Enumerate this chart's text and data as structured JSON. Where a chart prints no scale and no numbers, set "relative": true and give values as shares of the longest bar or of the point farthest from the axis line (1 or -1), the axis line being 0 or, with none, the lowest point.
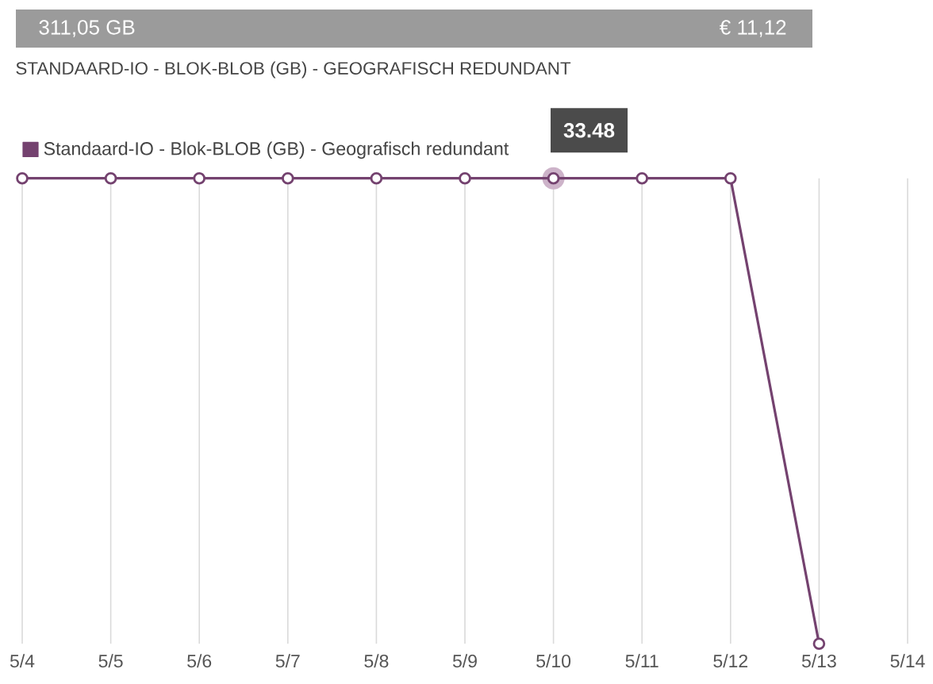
{
  "chart_data": {
    "type": "line",
    "title": "311,05 GB",
    "subtitle": "STANDAARD-IO - BLOK-BLOB (GB) - GEOGRAFISCH REDUNDANT",
    "categories": [
      "5/4",
      "5/5",
      "5/6",
      "5/7",
      "5/8",
      "5/9",
      "5/10",
      "5/11",
      "5/12",
      "5/13",
      "5/14"
    ],
    "series": [
      {
        "name": "Standaard-IO - Blok-BLOB (GB) - Geografisch redundant",
        "color": "#74426f",
        "values": [
          1,
          1,
          1,
          1,
          1,
          1,
          1,
          1,
          1,
          0,
          null
        ]
      }
    ],
    "relative": true,
    "annotations": [
      "€ 11,12",
      {
        "text": "33.48",
        "x": "5/10",
        "y": 1
      }
    ],
    "grid": "x",
    "legend": "top left",
    "marker": "circle",
    "line_style": "solid"
  }
}
